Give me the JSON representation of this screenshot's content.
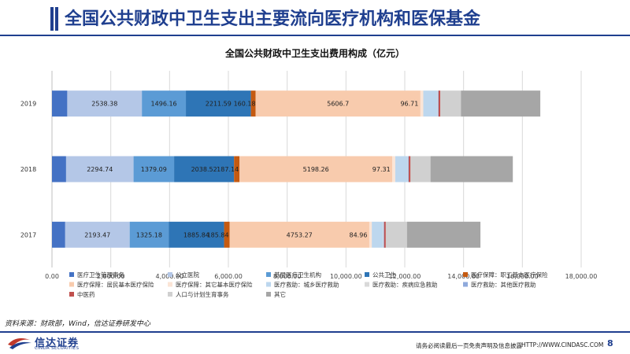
{
  "header": {
    "title": "全国公共财政中卫生支出主要流向医疗机构和医保基金"
  },
  "chart_data": {
    "type": "bar",
    "orientation": "horizontal",
    "stacked": true,
    "title": "全国公共财政中卫生支出费用构成（亿元）",
    "categories": [
      "2019",
      "2018",
      "2017"
    ],
    "xlim": [
      0,
      18000
    ],
    "xticks": [
      "0.00",
      "2,000.00",
      "4,000.00",
      "6,000.00",
      "8,000.00",
      "10,000.00",
      "12,000.00",
      "14,000.00",
      "16,000.00",
      "18,000.00"
    ],
    "grid": true,
    "legend_position": "bottom",
    "series": [
      {
        "name": "医疗卫生管理事务",
        "color": "#4472c4",
        "values": [
          520,
          480,
          450
        ]
      },
      {
        "name": "公立医院",
        "color": "#b4c7e7",
        "values": [
          2538.38,
          2294.74,
          2193.47
        ],
        "labels": [
          "2538.38",
          "2294.74",
          "2193.47"
        ]
      },
      {
        "name": "基层医疗卫生机构",
        "color": "#5b9bd5",
        "values": [
          1496.16,
          1379.09,
          1325.18
        ],
        "labels": [
          "1496.16",
          "1379.09",
          "1325.18"
        ]
      },
      {
        "name": "公共卫生",
        "color": "#2e75b6",
        "values": [
          2211.59,
          2038.52,
          1885.84
        ],
        "labels": [
          "2211.59",
          "2038.52",
          "1885.84"
        ]
      },
      {
        "name": "医疗保障：职工基本医疗保险",
        "color": "#c55a11",
        "values": [
          160.18,
          187.14,
          185.84
        ],
        "labels": [
          "160.18",
          "187.14",
          "185.84"
        ]
      },
      {
        "name": "医疗保障：居民基本医疗保险",
        "color": "#f8cbad",
        "values": [
          5606.7,
          5198.26,
          4753.27
        ],
        "labels": [
          "5606.7",
          "5198.26",
          "4753.27"
        ]
      },
      {
        "name": "医疗保障：其它基本医疗保险",
        "color": "#fbe5d6",
        "values": [
          96.71,
          97.31,
          84.96
        ],
        "labels": [
          "96.71",
          "97.31",
          "84.96"
        ]
      },
      {
        "name": "医疗救助：城乡医疗救助",
        "color": "#bdd7ee",
        "values": [
          480,
          420,
          380
        ]
      },
      {
        "name": "医疗救助：疾病应急救助",
        "color": "#d9d9d9",
        "values": [
          20,
          20,
          20
        ]
      },
      {
        "name": "医疗救助：其他医疗救助",
        "color": "#8faadc",
        "values": [
          20,
          20,
          20
        ]
      },
      {
        "name": "中医药",
        "color": "#c0504d",
        "values": [
          60,
          60,
          55
        ]
      },
      {
        "name": "人口与计划生育事务",
        "color": "#d0d0d0",
        "values": [
          700,
          680,
          720
        ]
      },
      {
        "name": "其它",
        "color": "#a6a6a6",
        "values": [
          2700,
          2800,
          2500
        ]
      }
    ]
  },
  "footer": {
    "source": "资料来源：财政部，Wind，信达证券研发中心",
    "logo_cn": "信达证券",
    "logo_en": "CINDA SECURITIES",
    "disclaimer": "请务必阅读最后一页免责声明及信息披露",
    "website": "HTTP://WWW.CINDASC.COM",
    "page": "8"
  }
}
